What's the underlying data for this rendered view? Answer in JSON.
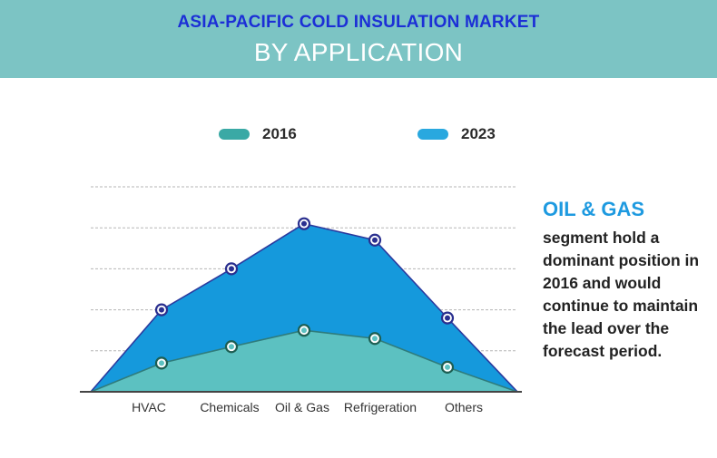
{
  "header": {
    "title_line1": "ASIA-PACIFIC COLD INSULATION MARKET",
    "title_line2": "BY APPLICATION",
    "background_color": "#7cc4c4"
  },
  "legend": [
    {
      "label": "2016",
      "color": "#3aa9a5"
    },
    {
      "label": "2023",
      "color": "#29a8df"
    }
  ],
  "sidebar": {
    "heading": "OIL & GAS",
    "text": "segment hold a dominant position in 2016 and would continue to maintain the lead over the forecast period."
  },
  "chart_data": {
    "type": "area",
    "categories": [
      "HVAC",
      "Chemicals",
      "Oil & Gas",
      "Refrigeration",
      "Others"
    ],
    "series": [
      {
        "name": "2023",
        "color": "#1599dc",
        "values": [
          2.0,
          3.0,
          4.1,
          3.7,
          1.8
        ]
      },
      {
        "name": "2016",
        "color": "#5cc1c1",
        "values": [
          0.7,
          1.1,
          1.5,
          1.3,
          0.6
        ]
      }
    ],
    "ylim": [
      0,
      5
    ],
    "grid": true,
    "legend_position": "top"
  }
}
